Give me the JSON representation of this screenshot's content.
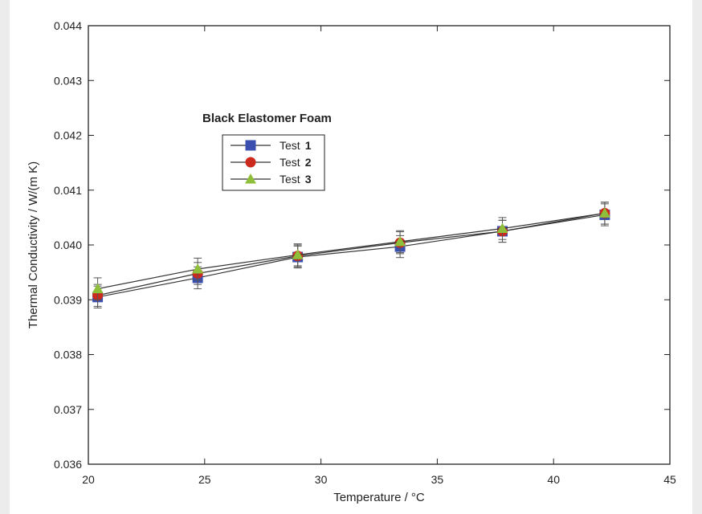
{
  "chart_data": {
    "type": "scatter",
    "title": "",
    "annotation": "Black Elastomer Foam",
    "xlabel": "Temperature / °C",
    "ylabel": "Thermal Conductivity / W/(m K)",
    "xlim": [
      20,
      45
    ],
    "ylim": [
      0.036,
      0.044
    ],
    "x_ticks": [
      "20",
      "25",
      "30",
      "35",
      "40",
      "45"
    ],
    "y_ticks": [
      "0.036",
      "0.037",
      "0.038",
      "0.039",
      "0.040",
      "0.041",
      "0.042",
      "0.043",
      "0.044"
    ],
    "grid": false,
    "legend_position": "upper-left",
    "series": [
      {
        "name": "Test",
        "number": "1",
        "marker": "square",
        "color": "#3a4fb0",
        "x": [
          20.4,
          24.7,
          29.0,
          33.4,
          37.8,
          42.2
        ],
        "y": [
          0.03905,
          0.0394,
          0.03978,
          0.03997,
          0.04025,
          0.04055
        ],
        "error": [
          0.0002,
          0.0002,
          0.0002,
          0.0002,
          0.0002,
          0.0002
        ]
      },
      {
        "name": "Test",
        "number": "2",
        "marker": "circle",
        "color": "#cc2a1c",
        "x": [
          20.4,
          24.7,
          29.0,
          33.4,
          37.8,
          42.2
        ],
        "y": [
          0.03908,
          0.03948,
          0.0398,
          0.04004,
          0.04025,
          0.04058
        ],
        "error": [
          0.0002,
          0.0002,
          0.0002,
          0.0002,
          0.0002,
          0.0002
        ]
      },
      {
        "name": "Test",
        "number": "3",
        "marker": "triangle",
        "color": "#8fbf3a",
        "x": [
          20.4,
          24.7,
          29.0,
          33.4,
          37.8,
          42.2
        ],
        "y": [
          0.0392,
          0.03956,
          0.03982,
          0.04006,
          0.0403,
          0.04058
        ],
        "error": [
          0.0002,
          0.0002,
          0.0002,
          0.0002,
          0.0002,
          0.0002
        ]
      }
    ]
  }
}
